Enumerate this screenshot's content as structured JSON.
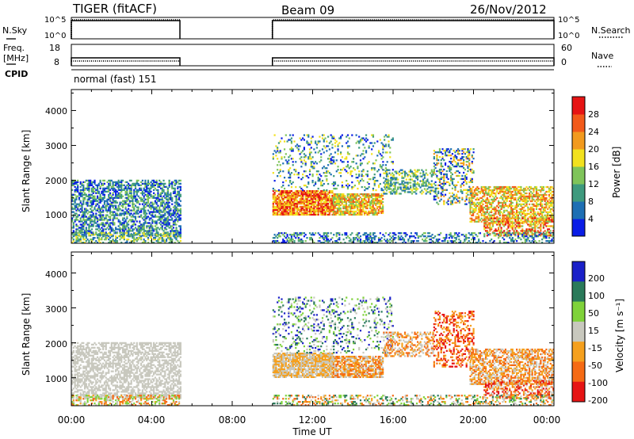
{
  "header": {
    "station": "TIGER (fitACF)",
    "beam": "Beam 09",
    "date": "26/Nov/2012"
  },
  "left_labels": {
    "nsky": "N.Sky",
    "freq_line1": "Freq.",
    "freq_line2": "[MHz]",
    "cpid": "CPID"
  },
  "right_labels": {
    "nsearch": "N.Search",
    "nave": "Nave"
  },
  "cpid_value": "normal (fast) 151",
  "colors": {
    "power": [
      "#0a1de6",
      "#1e6fb4",
      "#3e9a7e",
      "#7fc45a",
      "#f2e11e",
      "#f29a1e",
      "#f25a1a",
      "#e61414"
    ],
    "velocity": [
      "#1a20c8",
      "#2a7a5a",
      "#7fd23a",
      "#c8c8be",
      "#f5a01e",
      "#f56a14",
      "#e61414"
    ]
  },
  "chart_data": [
    {
      "type": "line",
      "title": "",
      "series": [
        {
          "name": "N.Sky",
          "segments": [
            [
              0.0,
              5.4
            ],
            [
              10.0,
              24.0
            ]
          ]
        },
        {
          "name": "N.Search",
          "segments": [
            [
              0.0,
              5.4
            ],
            [
              10.0,
              24.0
            ]
          ]
        }
      ],
      "ylabel_left": "N.Sky",
      "ylabel_right": "N.Search",
      "yticks_left": [
        "10^5",
        "10^0"
      ],
      "yticks_right": [
        "10^5",
        "10^0"
      ]
    },
    {
      "type": "line",
      "title": "",
      "series": [
        {
          "name": "Freq.",
          "level": 8,
          "segments": [
            [
              0.0,
              5.4
            ],
            [
              10.0,
              24.0
            ]
          ]
        },
        {
          "name": "Nave",
          "level_fraction": 0.2,
          "segments": [
            [
              0.0,
              5.4
            ],
            [
              10.0,
              24.0
            ]
          ]
        }
      ],
      "ylabel_left": "Freq. [MHz]",
      "ylabel_right": "Nave",
      "yticks_left": [
        "18",
        "8"
      ],
      "yticks_right": [
        "60",
        "0"
      ]
    },
    {
      "type": "heatmap",
      "ylabel": "Slant Range [km]",
      "yticks": [
        "1000",
        "2000",
        "3000",
        "4000"
      ],
      "ylim": [
        200,
        4600
      ],
      "xlim": [
        0,
        24
      ],
      "colorbar_label": "Power [dB]",
      "colorbar_ticks": [
        "4",
        "8",
        "12",
        "16",
        "20",
        "24",
        "28"
      ],
      "observing_windows": [
        [
          0.0,
          5.4
        ],
        [
          10.0,
          24.0
        ]
      ]
    },
    {
      "type": "heatmap",
      "ylabel": "Slant Range [km]",
      "yticks": [
        "1000",
        "2000",
        "3000",
        "4000"
      ],
      "ylim": [
        200,
        4600
      ],
      "xlim": [
        0,
        24
      ],
      "colorbar_label": "Velocity [m s⁻¹]",
      "colorbar_ticks": [
        "200",
        "100",
        "50",
        "15",
        "-15",
        "-50",
        "-100",
        "-200"
      ],
      "observing_windows": [
        [
          0.0,
          5.4
        ],
        [
          10.0,
          24.0
        ]
      ],
      "xticks": [
        "00:00",
        "04:00",
        "08:00",
        "12:00",
        "16:00",
        "20:00",
        "00:00"
      ],
      "xlabel": "Time UT"
    }
  ]
}
